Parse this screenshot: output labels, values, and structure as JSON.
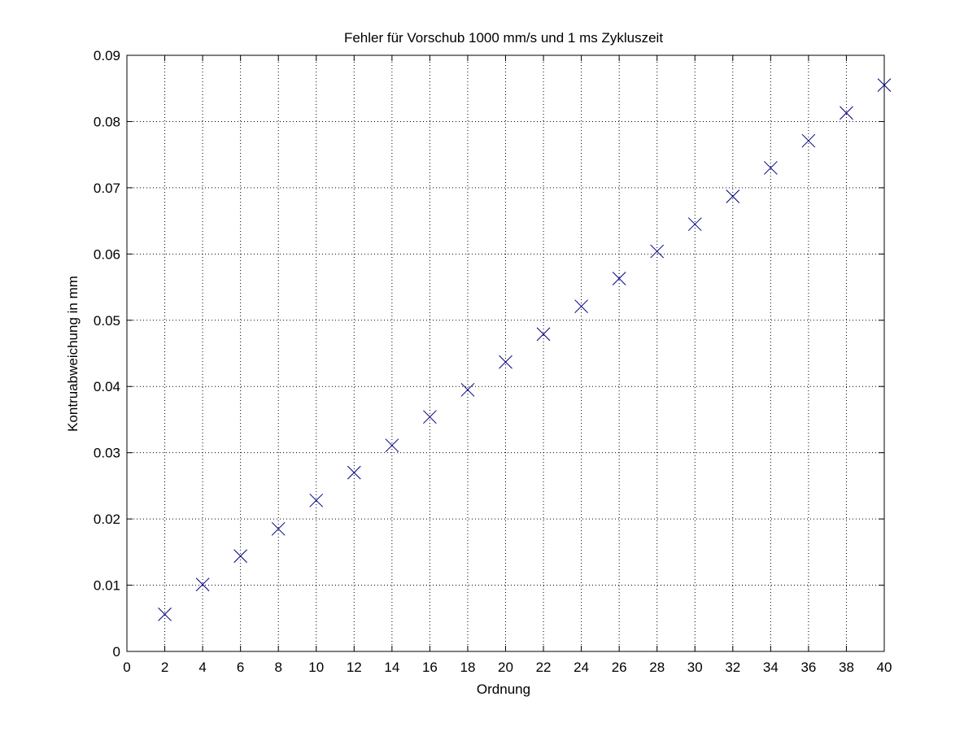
{
  "chart_data": {
    "type": "scatter",
    "title": "Fehler für Vorschub 1000 mm/s und 1 ms Zykluszeit",
    "xlabel": "Ordnung",
    "ylabel": "Kontruabweichung in mm",
    "xlim": [
      0,
      40
    ],
    "ylim": [
      0,
      0.09
    ],
    "xticks": [
      "0",
      "2",
      "4",
      "6",
      "8",
      "10",
      "12",
      "14",
      "16",
      "18",
      "20",
      "22",
      "24",
      "26",
      "28",
      "30",
      "32",
      "34",
      "36",
      "38",
      "40"
    ],
    "yticks": [
      "0",
      "0.01",
      "0.02",
      "0.03",
      "0.04",
      "0.05",
      "0.06",
      "0.07",
      "0.08",
      "0.09"
    ],
    "grid": true,
    "marker": "x",
    "marker_color": "#00007f",
    "series": [
      {
        "x": [
          2,
          4,
          6,
          8,
          10,
          12,
          14,
          16,
          18,
          20,
          22,
          24,
          26,
          28,
          30,
          32,
          34,
          36,
          38,
          40
        ],
        "y": [
          0.0056,
          0.0101,
          0.0144,
          0.0185,
          0.0228,
          0.027,
          0.0311,
          0.0354,
          0.0395,
          0.0437,
          0.0479,
          0.0521,
          0.0563,
          0.0604,
          0.0645,
          0.0687,
          0.073,
          0.0771,
          0.0813,
          0.0855
        ]
      }
    ]
  }
}
